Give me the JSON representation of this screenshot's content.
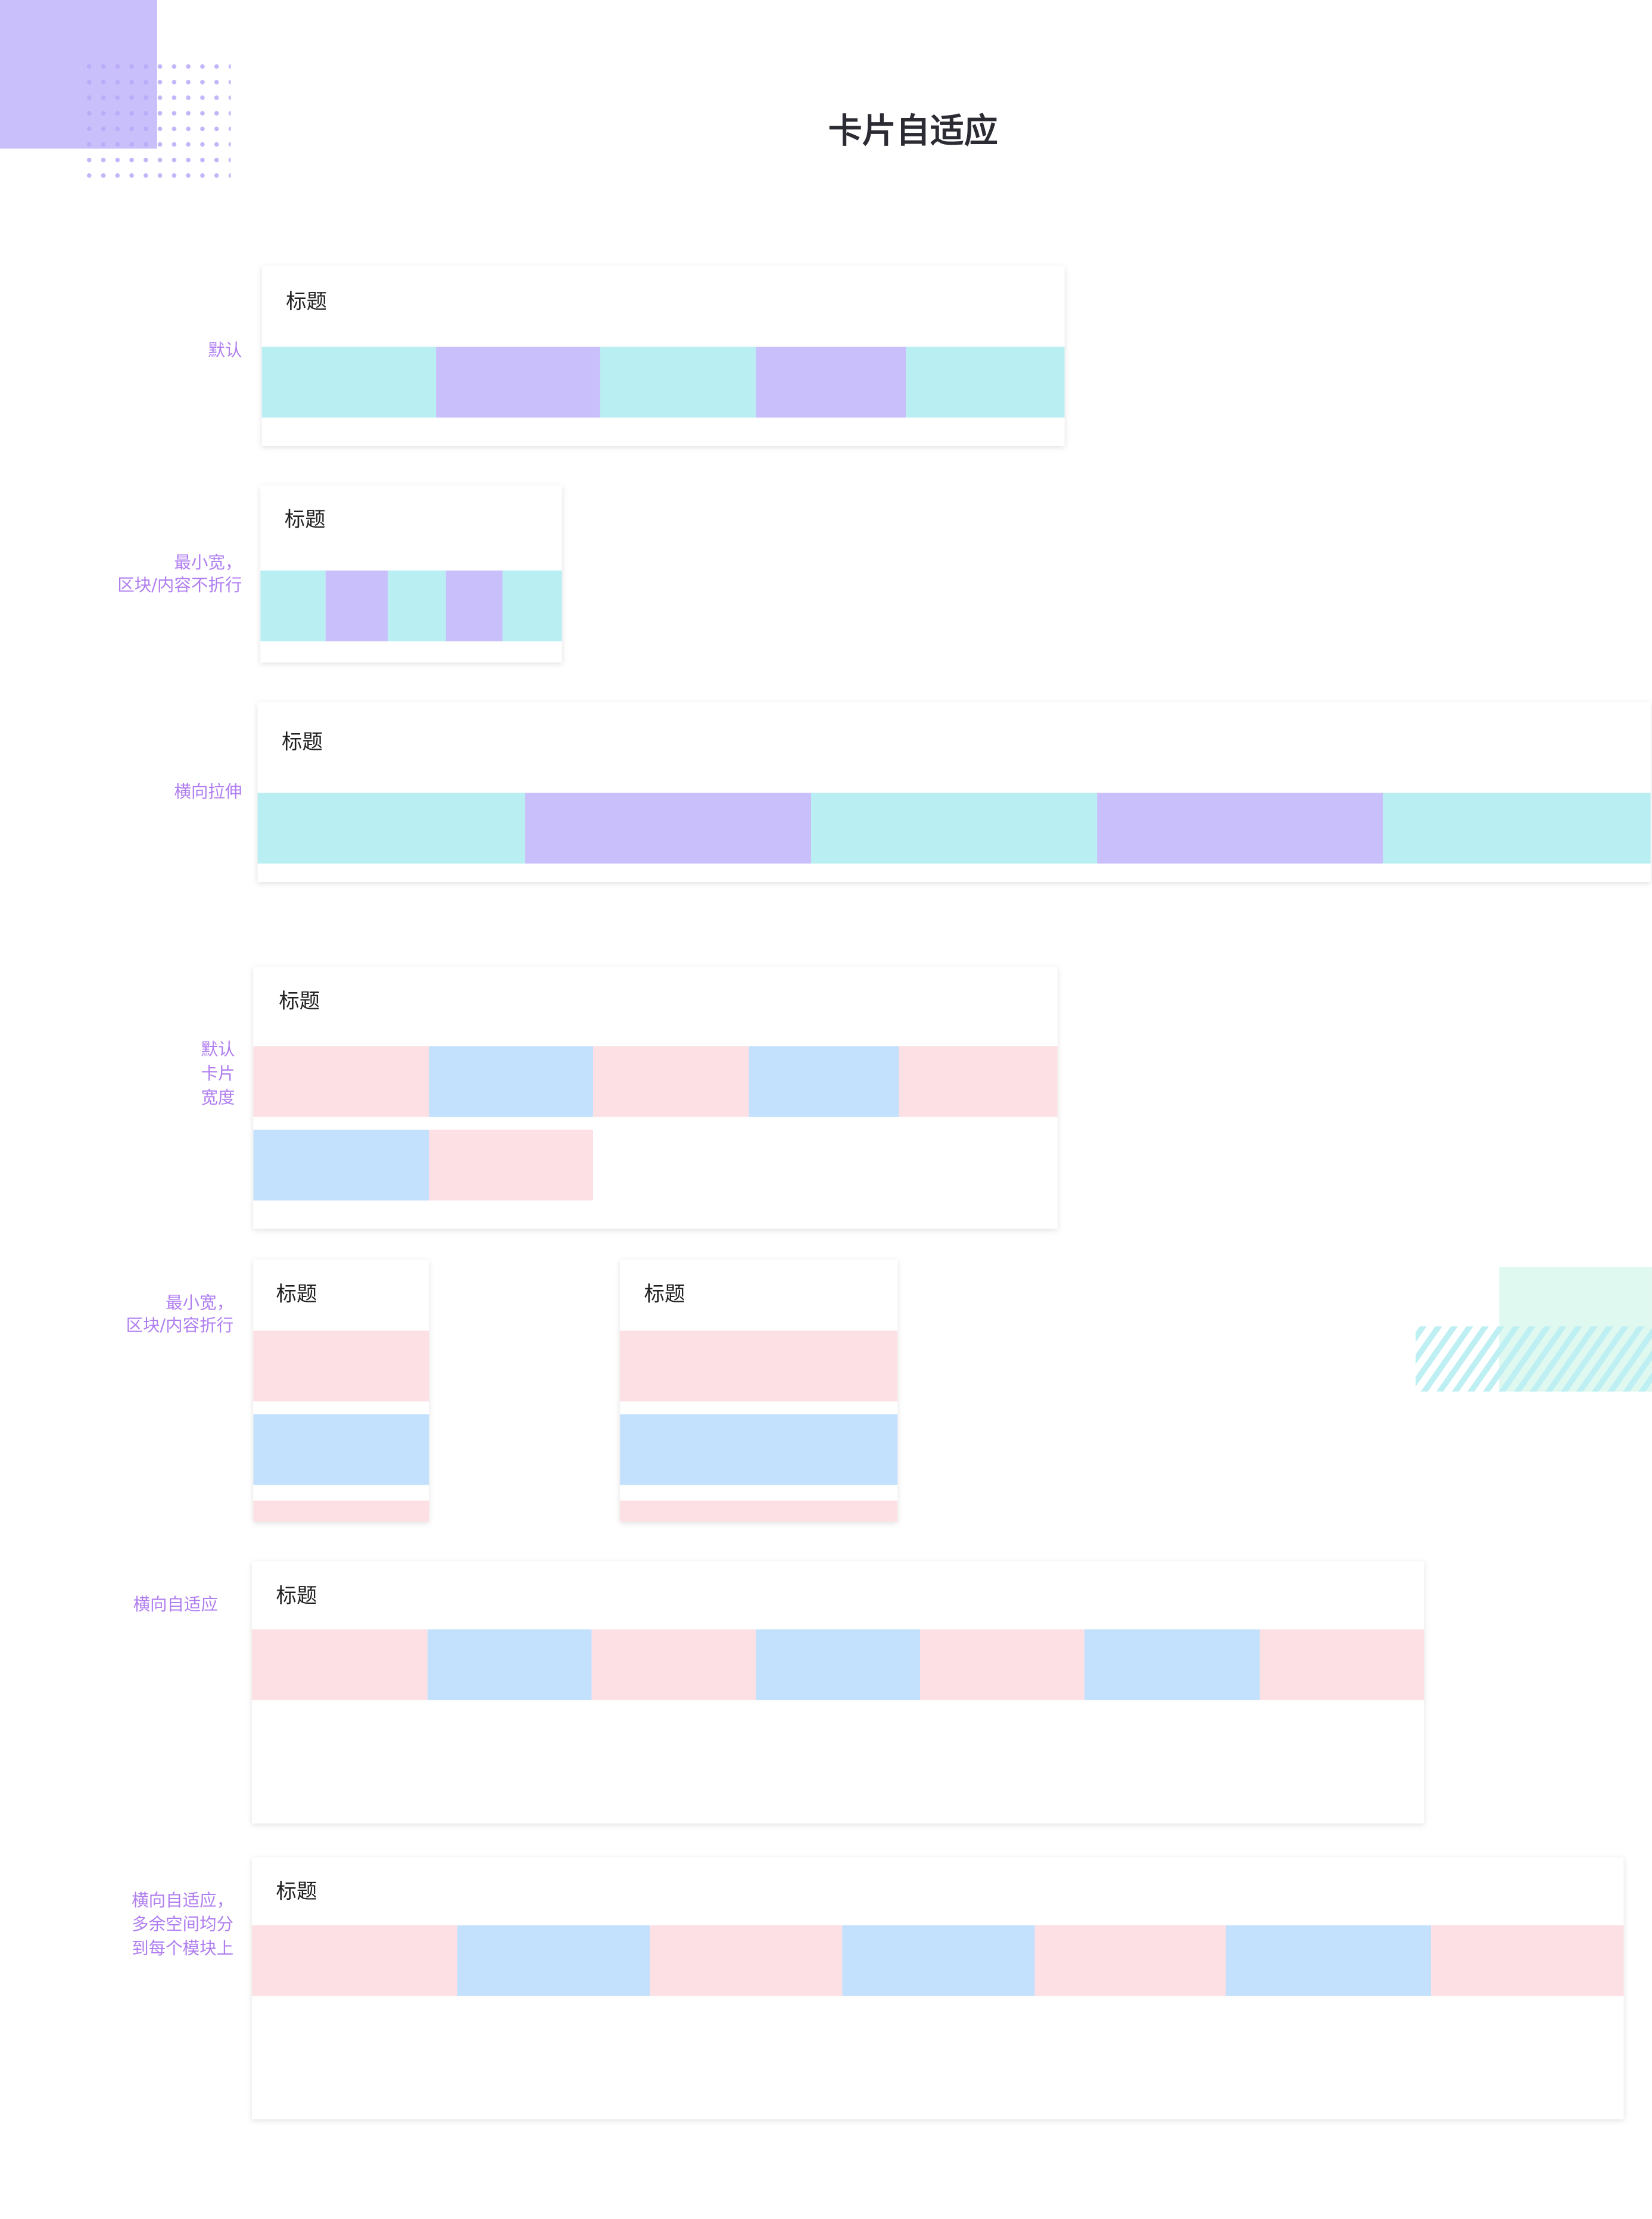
{
  "title": "卡片自适应",
  "sections": [
    {
      "label_lines": [
        "默认"
      ],
      "cards": [
        {
          "title": "标题"
        }
      ]
    },
    {
      "label_lines": [
        "最小宽，",
        "区块/内容不折行"
      ],
      "cards": [
        {
          "title": "标题"
        }
      ]
    },
    {
      "label_lines": [
        "横向拉伸"
      ],
      "cards": [
        {
          "title": "标题"
        }
      ]
    },
    {
      "label_lines": [
        "默认",
        "卡片",
        "宽度"
      ],
      "cards": [
        {
          "title": "标题"
        }
      ]
    },
    {
      "label_lines": [
        "最小宽，",
        "区块/内容折行"
      ],
      "cards": [
        {
          "title": "标题"
        },
        {
          "title": "标题"
        }
      ]
    },
    {
      "label_lines": [
        "横向自适应"
      ],
      "cards": [
        {
          "title": "标题"
        }
      ]
    },
    {
      "label_lines": [
        "横向自适应，",
        "多余空间均分",
        "到每个模块上"
      ],
      "cards": [
        {
          "title": "标题"
        }
      ]
    }
  ]
}
